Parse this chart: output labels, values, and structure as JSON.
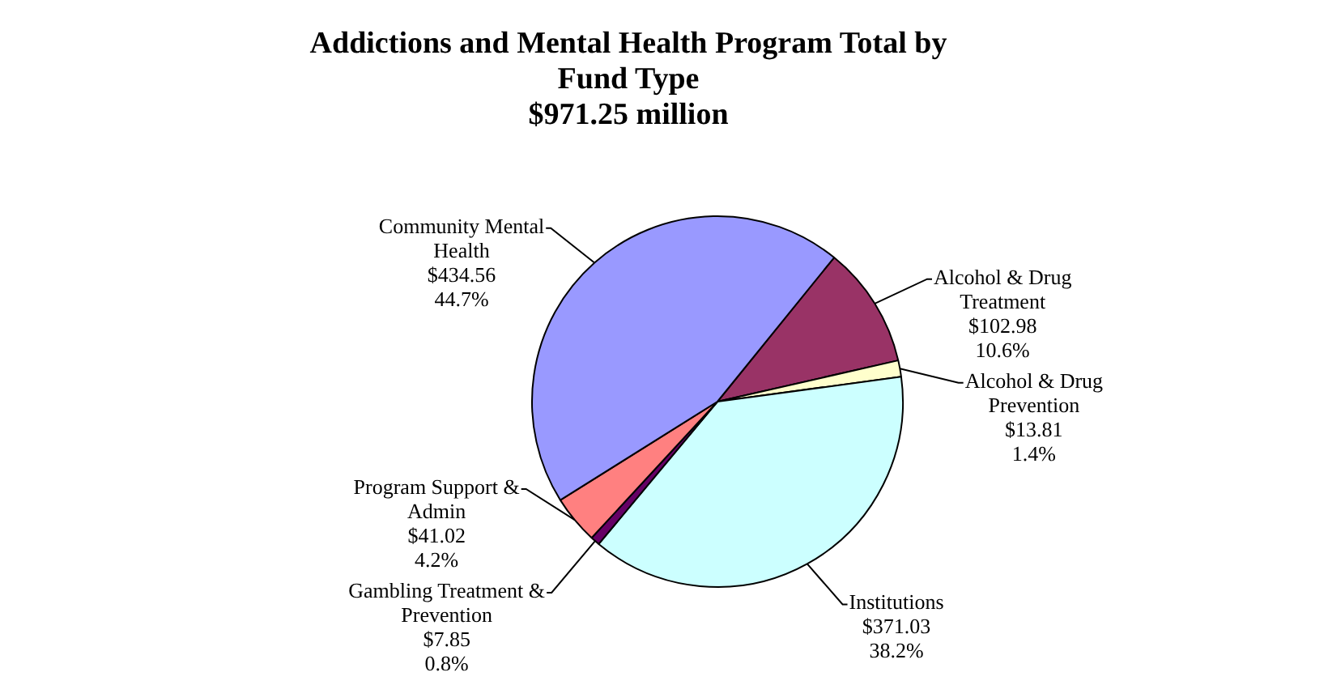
{
  "chart_data": {
    "type": "pie",
    "title": "Addictions and Mental Health Program Total by Fund Type",
    "subtitle": "$971.25 million",
    "categories": [
      "Alcohol & Drug Treatment",
      "Alcohol & Drug Prevention",
      "Institutions",
      "Gambling Treatment & Prevention",
      "Program Support & Admin",
      "Community Mental Health"
    ],
    "values": [
      102.98,
      13.81,
      371.03,
      7.85,
      41.02,
      434.56
    ],
    "colors": [
      "#993366",
      "#ffffcc",
      "#ccffff",
      "#660066",
      "#ff8080",
      "#9999ff"
    ],
    "value_labels": [
      "$102.98\n10.6%",
      "$13.81\n1.4%",
      "$371.03\n38.2%",
      "$7.85\n0.8%",
      "$41.02\n4.2%",
      "$434.56\n44.7%"
    ],
    "legend": false
  }
}
